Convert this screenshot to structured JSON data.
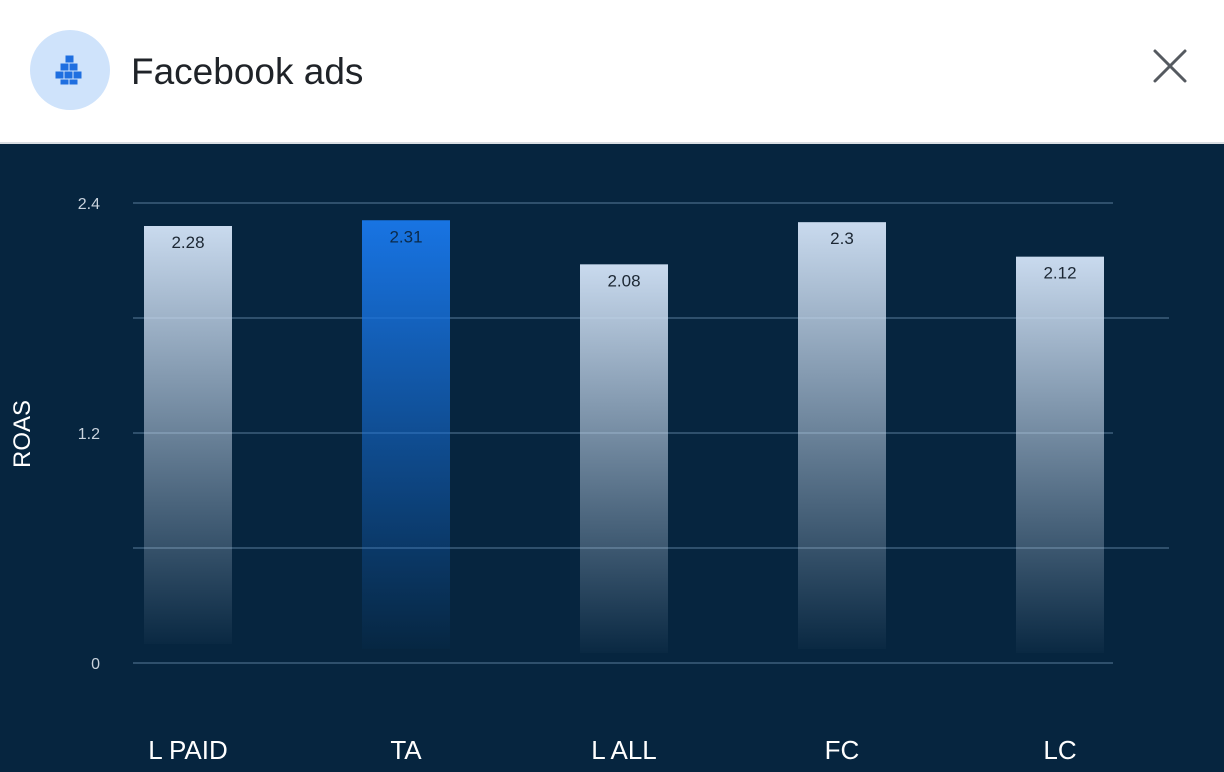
{
  "header": {
    "title": "Facebook ads",
    "app_icon": "blocks-icon",
    "close_icon": "close-icon"
  },
  "colors": {
    "chart_background": "#06253f",
    "highlight_bar": "#1874e3",
    "bar": "#c9daee",
    "gridline": "#3d5f7b"
  },
  "chart_data": {
    "type": "bar",
    "categories": [
      "L PAID",
      "TA",
      "L ALL",
      "FC",
      "LC"
    ],
    "values": [
      2.28,
      2.31,
      2.08,
      2.3,
      2.12
    ],
    "value_labels": [
      "2.28",
      "2.31",
      "2.08",
      "2.3",
      "2.12"
    ],
    "highlighted_category": "TA",
    "ylabel": "ROAS",
    "xlabel": "",
    "ylim": [
      0,
      2.4
    ],
    "yticks": [
      0,
      0.6,
      1.2,
      1.8,
      2.4
    ],
    "ytick_labels": [
      "0",
      "",
      "1.2",
      "",
      "2.4"
    ],
    "grid": true,
    "legend": "none"
  }
}
